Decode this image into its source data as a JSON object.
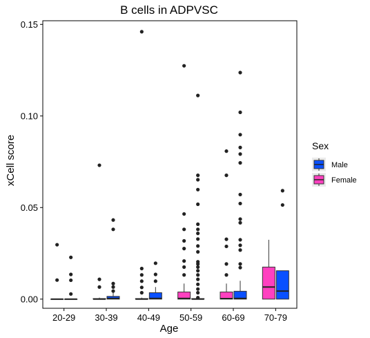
{
  "chart_data": {
    "type": "boxplot",
    "title": "B cells in ADPVSC",
    "xlabel": "Age",
    "ylabel": "xCell score",
    "categories": [
      "20-29",
      "30-39",
      "40-49",
      "50-59",
      "60-69",
      "70-79"
    ],
    "y_ticks": [
      {
        "value": 0.0,
        "label": "0.00"
      },
      {
        "value": 0.05,
        "label": "0.05"
      },
      {
        "value": 0.1,
        "label": "0.10"
      },
      {
        "value": 0.15,
        "label": "0.15"
      }
    ],
    "ylim": [
      -0.005,
      0.152
    ],
    "grid": false,
    "legend": {
      "title": "Sex",
      "placement": "right"
    },
    "series": [
      {
        "name": "Female",
        "color": "#FF40C0",
        "boxes": [
          {
            "q1": 0.0,
            "median": 0.0,
            "q3": 0.0,
            "whisker_low": 0.0,
            "whisker_high": 0.0,
            "outliers": [
              0.0297,
              0.0104
            ]
          },
          {
            "q1": 0.0,
            "median": 0.0,
            "q3": 0.0003,
            "whisker_low": 0.0,
            "whisker_high": 0.0008,
            "outliers": [
              0.0731,
              0.0108,
              0.0066
            ]
          },
          {
            "q1": 0.0,
            "median": 0.0,
            "q3": 0.0003,
            "whisker_low": 0.0,
            "whisker_high": 0.0008,
            "outliers": [
              0.146,
              0.0167,
              0.0132,
              0.0098,
              0.0064,
              0.0035
            ]
          },
          {
            "q1": 0.0,
            "median": 0.0004,
            "q3": 0.0039,
            "whisker_low": 0.0,
            "whisker_high": 0.0085,
            "outliers": [
              0.1274,
              0.0465,
              0.0381,
              0.0318,
              0.0276,
              0.0208,
              0.0175,
              0.0132
            ]
          },
          {
            "q1": 0.0,
            "median": 0.0003,
            "q3": 0.0039,
            "whisker_low": 0.0,
            "whisker_high": 0.0085,
            "outliers": [
              0.0808,
              0.0676,
              0.0327,
              0.0288,
              0.0192,
              0.0132
            ]
          },
          {
            "q1": 0.0,
            "median": 0.0066,
            "q3": 0.0175,
            "whisker_low": 0.0,
            "whisker_high": 0.0324,
            "outliers": []
          }
        ]
      },
      {
        "name": "Male",
        "color": "#0A50FF",
        "boxes": [
          {
            "q1": 0.0,
            "median": 0.0,
            "q3": 0.0,
            "whisker_low": 0.0,
            "whisker_high": 0.0,
            "outliers": [
              0.0228,
              0.0135,
              0.0103,
              0.0028
            ]
          },
          {
            "q1": 0.0,
            "median": 0.0004,
            "q3": 0.0015,
            "whisker_low": 0.0,
            "whisker_high": 0.0037,
            "outliers": [
              0.0432,
              0.0381,
              0.0085,
              0.0066,
              0.0044
            ]
          },
          {
            "q1": 0.0,
            "median": 0.0004,
            "q3": 0.0035,
            "whisker_low": 0.0,
            "whisker_high": 0.0066,
            "outliers": [
              0.0196,
              0.0135,
              0.0098
            ]
          },
          {
            "q1": 0.0,
            "median": 0.0,
            "q3": 0.0003,
            "whisker_low": 0.0,
            "whisker_high": 0.0008,
            "outliers": [
              0.1112,
              0.0676,
              0.0652,
              0.0598,
              0.0518,
              0.0409,
              0.0381,
              0.0359,
              0.0328,
              0.029,
              0.0258,
              0.0204,
              0.0192,
              0.0175,
              0.0155,
              0.0132,
              0.0108,
              0.0081,
              0.0055,
              0.0035,
              0.0008
            ]
          },
          {
            "q1": 0.0,
            "median": 0.0004,
            "q3": 0.0043,
            "whisker_low": 0.0,
            "whisker_high": 0.01,
            "outliers": [
              0.1237,
              0.102,
              0.0898,
              0.0828,
              0.0792,
              0.0744,
              0.0571,
              0.0522,
              0.0437,
              0.0417,
              0.0324,
              0.0294,
              0.0268,
              0.0192,
              0.0172
            ]
          },
          {
            "q1": 0.0,
            "median": 0.0044,
            "q3": 0.0155,
            "whisker_low": 0.0,
            "whisker_high": 0.0155,
            "outliers": [
              0.0592,
              0.0514
            ]
          }
        ]
      }
    ],
    "legend_entries": [
      "Male",
      "Female"
    ]
  }
}
